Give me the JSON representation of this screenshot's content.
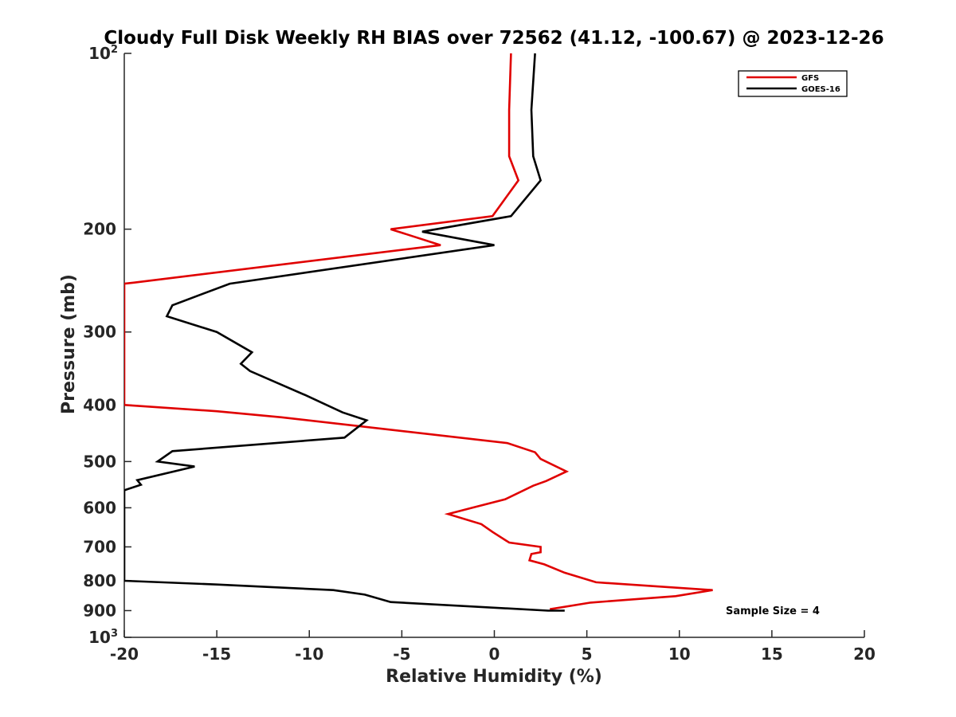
{
  "chart_data": {
    "type": "line",
    "title": "Cloudy Full Disk Weekly RH BIAS over 72562 (41.12, -100.67) @ 2023-12-26",
    "xlabel": "Relative Humidity (%)",
    "ylabel": "Pressure (mb)",
    "xlim": [
      -20,
      20
    ],
    "ylim": [
      100,
      1000
    ],
    "yscale": "log",
    "y_reversed": true,
    "xticks": [
      -20,
      -15,
      -10,
      -5,
      0,
      5,
      10,
      15,
      20
    ],
    "xtick_labels": [
      "-20",
      "-15",
      "-10",
      "-5",
      "0",
      "5",
      "10",
      "15",
      "20"
    ],
    "yticks": [
      {
        "value": 100,
        "label": "10",
        "sup": "2"
      },
      {
        "value": 200,
        "label": "200"
      },
      {
        "value": 300,
        "label": "300"
      },
      {
        "value": 400,
        "label": "400"
      },
      {
        "value": 500,
        "label": "500"
      },
      {
        "value": 600,
        "label": "600"
      },
      {
        "value": 700,
        "label": "700"
      },
      {
        "value": 800,
        "label": "800"
      },
      {
        "value": 900,
        "label": "900"
      },
      {
        "value": 1000,
        "label": "10",
        "sup": "3"
      }
    ],
    "grid": false,
    "legend_position": "top-right",
    "annotation": "Sample Size = 4",
    "series": [
      {
        "name": "GFS",
        "color": "#e00000",
        "points": [
          [
            0.9,
            100
          ],
          [
            0.8,
            125
          ],
          [
            0.8,
            150
          ],
          [
            1.3,
            165
          ],
          [
            -0.1,
            190
          ],
          [
            -5.6,
            200
          ],
          [
            -2.9,
            213
          ],
          [
            -19.5,
            247
          ],
          [
            -20,
            248
          ],
          [
            -20,
            400
          ],
          [
            -15,
            410
          ],
          [
            -11.5,
            420
          ],
          [
            0.7,
            465
          ],
          [
            2.2,
            482
          ],
          [
            2.5,
            495
          ],
          [
            3.9,
            520
          ],
          [
            2.8,
            540
          ],
          [
            2.1,
            550
          ],
          [
            0.6,
            580
          ],
          [
            -1.2,
            600
          ],
          [
            -2.5,
            615
          ],
          [
            -0.7,
            640
          ],
          [
            -0.1,
            660
          ],
          [
            0.8,
            688
          ],
          [
            2.5,
            700
          ],
          [
            2.5,
            715
          ],
          [
            2.0,
            720
          ],
          [
            1.9,
            738
          ],
          [
            2.7,
            750
          ],
          [
            3.8,
            775
          ],
          [
            5.5,
            805
          ],
          [
            11.8,
            830
          ],
          [
            9.8,
            850
          ],
          [
            5.2,
            872
          ],
          [
            3.0,
            895
          ]
        ]
      },
      {
        "name": "GOES-16",
        "color": "#000000",
        "points": [
          [
            2.2,
            100
          ],
          [
            2.0,
            125
          ],
          [
            2.1,
            150
          ],
          [
            2.5,
            165
          ],
          [
            0.9,
            190
          ],
          [
            -3.9,
            202
          ],
          [
            0.0,
            213
          ],
          [
            -14.3,
            248
          ],
          [
            -17.4,
            270
          ],
          [
            -17.7,
            282
          ],
          [
            -15.0,
            300
          ],
          [
            -13.1,
            325
          ],
          [
            -13.7,
            340
          ],
          [
            -13.2,
            350
          ],
          [
            -10.2,
            385
          ],
          [
            -8.2,
            412
          ],
          [
            -6.9,
            425
          ],
          [
            -8.1,
            455
          ],
          [
            -17.4,
            480
          ],
          [
            -18.2,
            500
          ],
          [
            -16.2,
            510
          ],
          [
            -19.3,
            538
          ],
          [
            -19.1,
            548
          ],
          [
            -20.0,
            560
          ],
          [
            -20.0,
            800
          ],
          [
            -15,
            812
          ],
          [
            -8.7,
            830
          ],
          [
            -7.0,
            845
          ],
          [
            -5.6,
            870
          ],
          [
            2.9,
            900
          ],
          [
            3.8,
            900
          ]
        ]
      }
    ]
  }
}
